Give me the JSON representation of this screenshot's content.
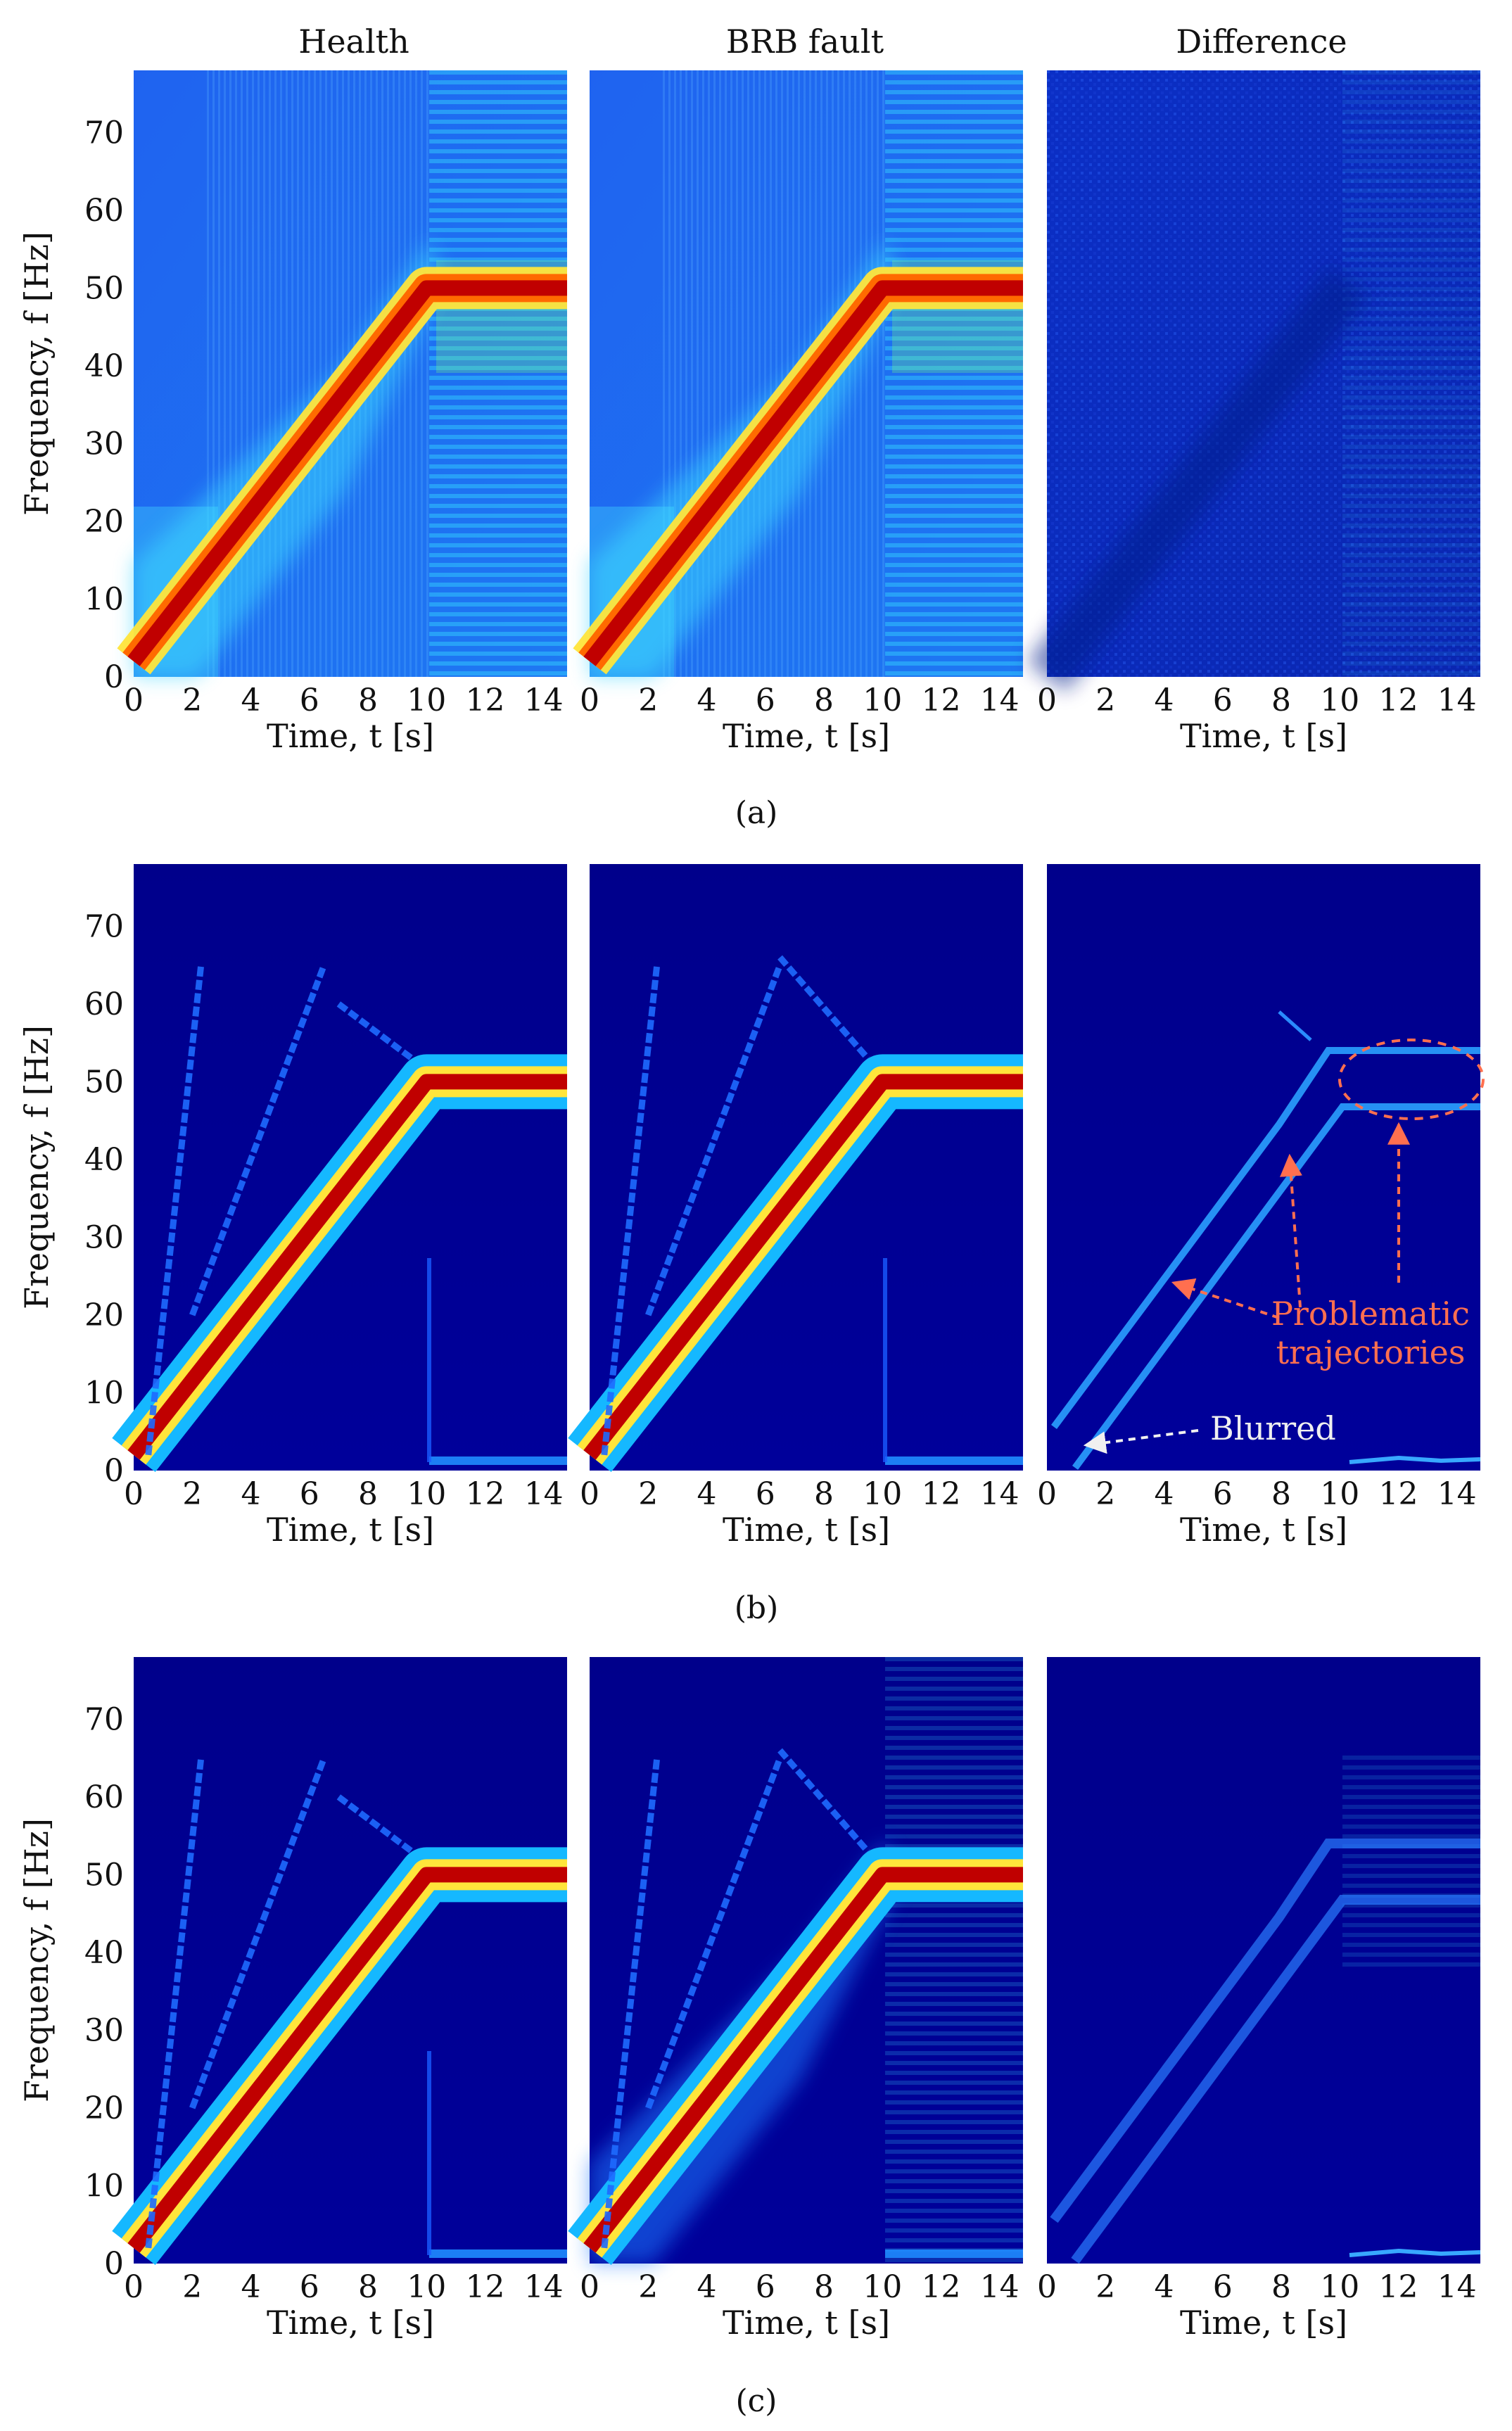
{
  "figure": {
    "column_titles": [
      "Health",
      "BRB fault",
      "Difference"
    ],
    "row_labels": [
      "(a)",
      "(b)",
      "(c)"
    ],
    "x_axis": {
      "label": "Time, t [s]",
      "ticks": [
        0,
        2,
        4,
        6,
        8,
        10,
        12,
        14
      ],
      "range": [
        0,
        14.8
      ]
    },
    "y_axis": {
      "label": "Frequency, f [Hz]",
      "ticks": [
        0,
        10,
        20,
        30,
        40,
        50,
        60,
        70
      ],
      "range": [
        0,
        78
      ]
    },
    "colormap": "jet",
    "annotations": {
      "problematic_line1": "Problematic",
      "problematic_line2": "trajectories",
      "blurred": "Blurred"
    },
    "colors": {
      "background_dark": "#00008f",
      "background_light": "#1c4ce8",
      "ridge_core": "#b00000",
      "problematic_annotation": "#ff6f4f",
      "blurred_annotation": "#f0f0f0"
    }
  },
  "chart_data": [
    {
      "panel": "a-health",
      "row": "(a)",
      "title": "Health",
      "type": "heatmap",
      "description": "time-frequency map",
      "ridge": {
        "ramp": [
          [
            0,
            2
          ],
          [
            10,
            50
          ]
        ],
        "steady_f": 50,
        "steady_from_t": 10
      },
      "harmonic_ridges": [],
      "xlabel": "Time, t [s]",
      "ylabel": "Frequency, f [Hz]",
      "xlim": [
        0,
        14.8
      ],
      "ylim": [
        0,
        78
      ]
    },
    {
      "panel": "a-brb",
      "row": "(a)",
      "title": "BRB fault",
      "type": "heatmap",
      "description": "time-frequency map",
      "ridge": {
        "ramp": [
          [
            0,
            2
          ],
          [
            10,
            50
          ]
        ],
        "steady_f": 50,
        "steady_from_t": 10
      },
      "harmonic_ridges": [],
      "xlabel": "Time, t [s]",
      "ylabel": "",
      "xlim": [
        0,
        14.8
      ],
      "ylim": [
        0,
        78
      ]
    },
    {
      "panel": "a-diff",
      "row": "(a)",
      "title": "Difference",
      "type": "heatmap",
      "description": "difference map",
      "ridge": null,
      "harmonic_ridges": [],
      "xlabel": "Time, t [s]",
      "ylabel": "",
      "xlim": [
        0,
        14.8
      ],
      "ylim": [
        0,
        78
      ]
    },
    {
      "panel": "b-health",
      "row": "(b)",
      "title": "",
      "type": "heatmap",
      "description": "time-frequency map",
      "ridge": {
        "ramp": [
          [
            0,
            2
          ],
          [
            10,
            50
          ]
        ],
        "steady_f": 50,
        "steady_from_t": 10
      },
      "harmonic_ridges": [
        [
          [
            0.5,
            2
          ],
          [
            2.3,
            65
          ]
        ],
        [
          [
            2,
            20
          ],
          [
            6.5,
            65
          ]
        ],
        [
          [
            7,
            60
          ],
          [
            9.5,
            53
          ]
        ]
      ],
      "xlabel": "Time, t [s]",
      "ylabel": "Frequency, f [Hz]",
      "xlim": [
        0,
        14.8
      ],
      "ylim": [
        0,
        78
      ]
    },
    {
      "panel": "b-brb",
      "row": "(b)",
      "title": "",
      "type": "heatmap",
      "description": "time-frequency map",
      "ridge": {
        "ramp": [
          [
            0,
            2
          ],
          [
            10,
            50
          ]
        ],
        "steady_f": 50,
        "steady_from_t": 10
      },
      "harmonic_ridges": [
        [
          [
            0.5,
            2
          ],
          [
            2.3,
            65
          ]
        ],
        [
          [
            2,
            20
          ],
          [
            6.5,
            65
          ]
        ],
        [
          [
            6.5,
            66
          ],
          [
            9.5,
            53
          ]
        ]
      ],
      "xlabel": "Time, t [s]",
      "ylabel": "",
      "xlim": [
        0,
        14.8
      ],
      "ylim": [
        0,
        78
      ]
    },
    {
      "panel": "b-diff",
      "row": "(b)",
      "title": "",
      "type": "heatmap",
      "description": "difference map",
      "ridge": null,
      "harmonic_ridges": [],
      "xlabel": "Time, t [s]",
      "ylabel": "",
      "xlim": [
        0,
        14.8
      ],
      "ylim": [
        0,
        78
      ]
    },
    {
      "panel": "c-health",
      "row": "(c)",
      "title": "",
      "type": "heatmap",
      "description": "time-frequency map",
      "ridge": {
        "ramp": [
          [
            0,
            2
          ],
          [
            10,
            50
          ]
        ],
        "steady_f": 50,
        "steady_from_t": 10
      },
      "harmonic_ridges": [
        [
          [
            0.5,
            2
          ],
          [
            2.3,
            65
          ]
        ],
        [
          [
            2,
            20
          ],
          [
            6.5,
            65
          ]
        ],
        [
          [
            7,
            60
          ],
          [
            9.5,
            53
          ]
        ]
      ],
      "xlabel": "Time, t [s]",
      "ylabel": "Frequency, f [Hz]",
      "xlim": [
        0,
        14.8
      ],
      "ylim": [
        0,
        78
      ]
    },
    {
      "panel": "c-brb",
      "row": "(c)",
      "title": "",
      "type": "heatmap",
      "description": "time-frequency map",
      "ridge": {
        "ramp": [
          [
            0,
            2
          ],
          [
            10,
            50
          ]
        ],
        "steady_f": 50,
        "steady_from_t": 10
      },
      "harmonic_ridges": [
        [
          [
            0.5,
            2
          ],
          [
            2.3,
            65
          ]
        ],
        [
          [
            2,
            20
          ],
          [
            6.5,
            65
          ]
        ],
        [
          [
            6.5,
            66
          ],
          [
            9.5,
            53
          ]
        ]
      ],
      "xlabel": "Time, t [s]",
      "ylabel": "",
      "xlim": [
        0,
        14.8
      ],
      "ylim": [
        0,
        78
      ]
    },
    {
      "panel": "c-diff",
      "row": "(c)",
      "title": "",
      "type": "heatmap",
      "description": "difference map",
      "ridge": null,
      "harmonic_ridges": [],
      "xlabel": "Time, t [s]",
      "ylabel": "",
      "xlim": [
        0,
        14.8
      ],
      "ylim": [
        0,
        78
      ]
    }
  ]
}
